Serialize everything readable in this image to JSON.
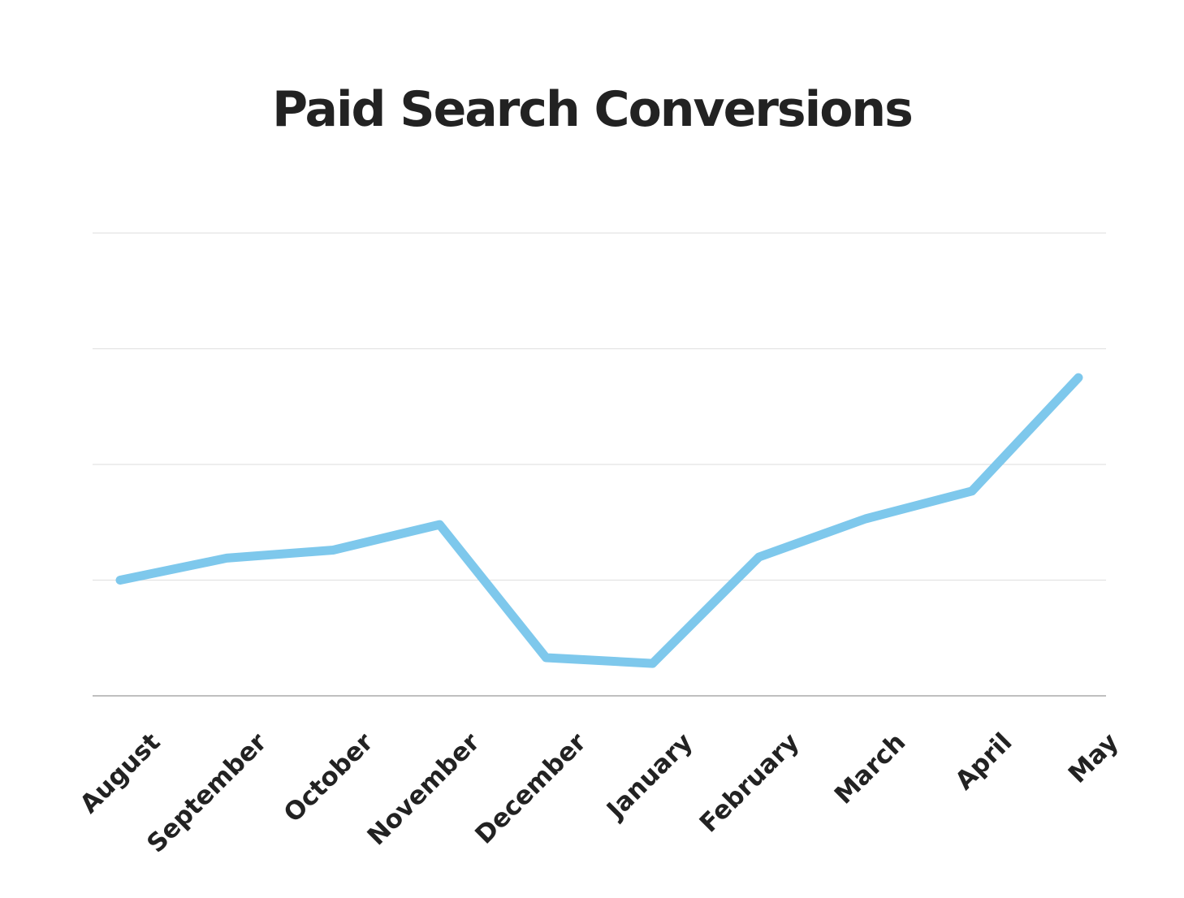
{
  "chart_data": {
    "type": "line",
    "title": "Paid Search Conversions",
    "xlabel": "",
    "ylabel": "",
    "categories": [
      "August",
      "September",
      "October",
      "November",
      "December",
      "January",
      "February",
      "March",
      "April",
      "May"
    ],
    "series": [
      {
        "values": [
          1.0,
          1.19,
          1.26,
          1.48,
          0.33,
          0.28,
          1.2,
          1.53,
          1.77,
          2.75
        ]
      }
    ],
    "ylim": [
      0,
      4
    ],
    "grid": true,
    "legend": "none",
    "colors": {
      "line": "#7ec8ec",
      "title": "#222222",
      "tick": "#222222"
    }
  }
}
